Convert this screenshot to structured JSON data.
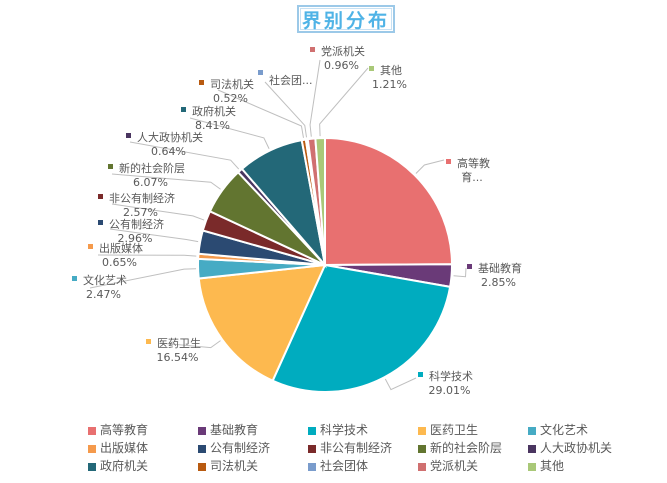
{
  "title": "界别分布",
  "chart_data": {
    "type": "pie",
    "title": "界别分布",
    "start_angle_deg": 0,
    "direction": "clockwise",
    "legend_position": "bottom",
    "unit": "%",
    "slices": [
      {
        "label": "高等教育",
        "value": 24.9,
        "display": "高等教\n育...",
        "color": "#e87070",
        "estimated": true
      },
      {
        "label": "基础教育",
        "value": 2.85,
        "display": "2.85%",
        "color": "#6a3a78"
      },
      {
        "label": "科学技术",
        "value": 29.01,
        "display": "29.01%",
        "color": "#00acbf"
      },
      {
        "label": "医药卫生",
        "value": 16.54,
        "display": "16.54%",
        "color": "#fdb94f"
      },
      {
        "label": "文化艺术",
        "value": 2.47,
        "display": "2.47%",
        "color": "#46abc4"
      },
      {
        "label": "出版媒体",
        "value": 0.65,
        "display": "0.65%",
        "color": "#f59a4c"
      },
      {
        "label": "公有制经济",
        "value": 2.96,
        "display": "2.96%",
        "color": "#2b4a72"
      },
      {
        "label": "非公有制经济",
        "value": 2.57,
        "display": "2.57%",
        "color": "#7a2a2a"
      },
      {
        "label": "新的社会阶层",
        "value": 6.07,
        "display": "6.07%",
        "color": "#627530"
      },
      {
        "label": "人大政协机关",
        "value": 0.64,
        "display": "0.64%",
        "color": "#4a3560"
      },
      {
        "label": "政府机关",
        "value": 8.41,
        "display": "8.41%",
        "color": "#236878"
      },
      {
        "label": "司法机关",
        "value": 0.52,
        "display": "0.52%",
        "color": "#b85a10"
      },
      {
        "label": "社会团体",
        "value": 0.24,
        "display": "社会团...",
        "color": "#7a9ccc",
        "estimated": true
      },
      {
        "label": "党派机关",
        "value": 0.96,
        "display": "0.96%",
        "color": "#d07070"
      },
      {
        "label": "其他",
        "value": 1.21,
        "display": "1.21%",
        "color": "#a9c878"
      }
    ]
  },
  "labels": [
    {
      "name": "高等教",
      "line2": "育...",
      "color": "#e87070"
    },
    {
      "name": "基础教育",
      "line2": "2.85%",
      "color": "#6a3a78"
    },
    {
      "name": "科学技术",
      "line2": "29.01%",
      "color": "#00acbf"
    },
    {
      "name": "医药卫生",
      "line2": "16.54%",
      "color": "#fdb94f"
    },
    {
      "name": "文化艺术",
      "line2": "2.47%",
      "color": "#46abc4"
    },
    {
      "name": "出版媒体",
      "line2": "0.65%",
      "color": "#f59a4c"
    },
    {
      "name": "公有制经济",
      "line2": "2.96%",
      "color": "#2b4a72"
    },
    {
      "name": "非公有制经济",
      "line2": "2.57%",
      "color": "#7a2a2a"
    },
    {
      "name": "新的社会阶层",
      "line2": "6.07%",
      "color": "#627530"
    },
    {
      "name": "人大政协机关",
      "line2": "0.64%",
      "color": "#4a3560"
    },
    {
      "name": "政府机关",
      "line2": "8.41%",
      "color": "#236878"
    },
    {
      "name": "司法机关",
      "line2": "0.52%",
      "color": "#b85a10"
    },
    {
      "name": "社会团...",
      "line2": "",
      "color": "#7a9ccc"
    },
    {
      "name": "党派机关",
      "line2": "0.96%",
      "color": "#d07070"
    },
    {
      "name": "其他",
      "line2": "1.21%",
      "color": "#a9c878"
    }
  ],
  "legend": [
    {
      "label": "高等教育",
      "color": "#e87070"
    },
    {
      "label": "基础教育",
      "color": "#6a3a78"
    },
    {
      "label": "科学技术",
      "color": "#00acbf"
    },
    {
      "label": "医药卫生",
      "color": "#fdb94f"
    },
    {
      "label": "文化艺术",
      "color": "#46abc4"
    },
    {
      "label": "出版媒体",
      "color": "#f59a4c"
    },
    {
      "label": "公有制经济",
      "color": "#2b4a72"
    },
    {
      "label": "非公有制经济",
      "color": "#7a2a2a"
    },
    {
      "label": "新的社会阶层",
      "color": "#627530"
    },
    {
      "label": "人大政协机关",
      "color": "#4a3560"
    },
    {
      "label": "政府机关",
      "color": "#236878"
    },
    {
      "label": "司法机关",
      "color": "#b85a10"
    },
    {
      "label": "社会团体",
      "color": "#7a9ccc"
    },
    {
      "label": "党派机关",
      "color": "#d07070"
    },
    {
      "label": "其他",
      "color": "#a9c878"
    }
  ]
}
